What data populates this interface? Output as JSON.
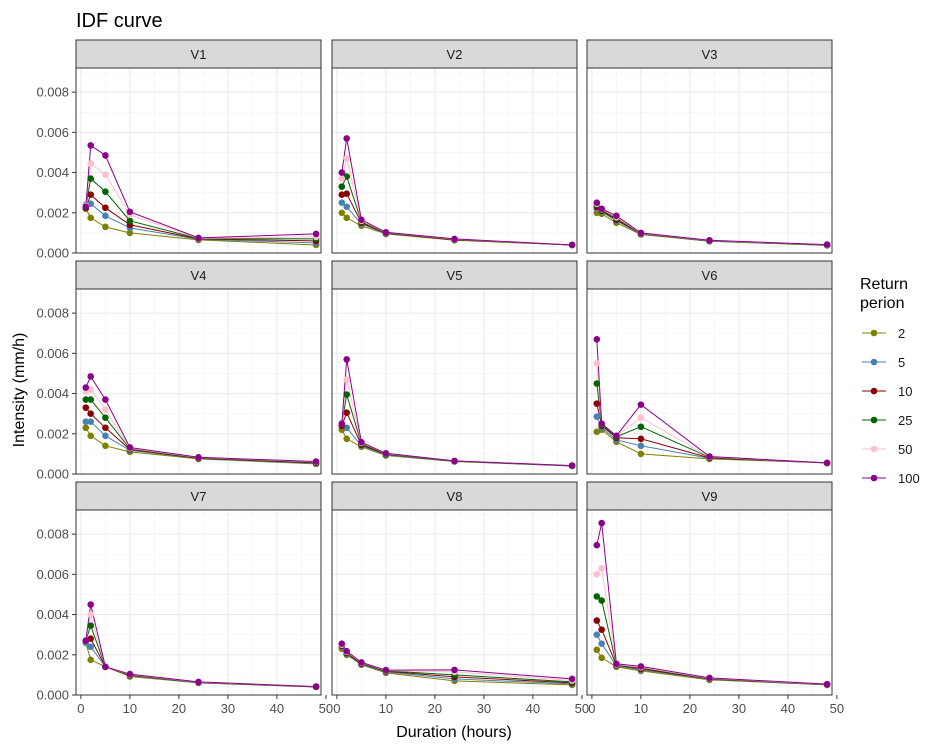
{
  "chart_data": {
    "type": "line",
    "title": "IDF curve",
    "xlabel": "Duration (hours)",
    "ylabel": "Intensity (mm/h)",
    "xlim": [
      -1,
      49
    ],
    "ylim": [
      0,
      0.0092
    ],
    "x_ticks": [
      0,
      10,
      20,
      30,
      40,
      50
    ],
    "y_ticks": [
      0.0,
      0.002,
      0.004,
      0.006,
      0.008
    ],
    "y_tick_labels": [
      "0.000",
      "0.002",
      "0.004",
      "0.006",
      "0.008"
    ],
    "durations": [
      1,
      2,
      5,
      10,
      24,
      48
    ],
    "legend": {
      "title_line1": "Return",
      "title_line2": "perion",
      "placement": "right",
      "entries": [
        {
          "name": "2",
          "color": "#808000"
        },
        {
          "name": "5",
          "color": "#4682B4"
        },
        {
          "name": "10",
          "color": "#8B0000"
        },
        {
          "name": "25",
          "color": "#006400"
        },
        {
          "name": "50",
          "color": "#FFC0CB"
        },
        {
          "name": "100",
          "color": "#8B008B"
        }
      ]
    },
    "panels": [
      {
        "name": "V1",
        "series": [
          [
            0.0022,
            0.00175,
            0.0013,
            0.001,
            0.00065,
            0.0004
          ],
          [
            0.0024,
            0.00245,
            0.00185,
            0.00125,
            0.00068,
            0.0005
          ],
          [
            0.00225,
            0.0029,
            0.00225,
            0.0014,
            0.0007,
            0.0006
          ],
          [
            0.0023,
            0.0037,
            0.00305,
            0.0016,
            0.00072,
            0.0007
          ],
          [
            0.00235,
            0.00445,
            0.0039,
            0.0019,
            0.00073,
            0.0008
          ],
          [
            0.0023,
            0.00535,
            0.00485,
            0.00205,
            0.00075,
            0.00095
          ]
        ]
      },
      {
        "name": "V2",
        "series": [
          [
            0.002,
            0.00175,
            0.00135,
            0.00095,
            0.00063,
            0.0004
          ],
          [
            0.0025,
            0.0023,
            0.00145,
            0.00097,
            0.00065,
            0.0004
          ],
          [
            0.0029,
            0.00295,
            0.0015,
            0.00098,
            0.00066,
            0.0004
          ],
          [
            0.0033,
            0.0038,
            0.00155,
            0.001,
            0.00068,
            0.0004
          ],
          [
            0.0037,
            0.0047,
            0.0016,
            0.00102,
            0.00069,
            0.0004
          ],
          [
            0.004,
            0.0057,
            0.00165,
            0.00103,
            0.0007,
            0.0004
          ]
        ]
      },
      {
        "name": "V3",
        "series": [
          [
            0.002,
            0.00195,
            0.0015,
            0.00092,
            0.00058,
            0.00038
          ],
          [
            0.0022,
            0.00205,
            0.0016,
            0.00095,
            0.00059,
            0.00039
          ],
          [
            0.0023,
            0.0021,
            0.00165,
            0.00097,
            0.0006,
            0.0004
          ],
          [
            0.0024,
            0.00215,
            0.00172,
            0.00098,
            0.00061,
            0.0004
          ],
          [
            0.00245,
            0.00218,
            0.00178,
            0.00099,
            0.00062,
            0.00041
          ],
          [
            0.0025,
            0.0022,
            0.00185,
            0.001,
            0.00063,
            0.00042
          ]
        ]
      },
      {
        "name": "V4",
        "series": [
          [
            0.0023,
            0.0019,
            0.0014,
            0.0011,
            0.00075,
            0.0005
          ],
          [
            0.0026,
            0.0026,
            0.0019,
            0.00118,
            0.00077,
            0.00052
          ],
          [
            0.0033,
            0.003,
            0.0023,
            0.00122,
            0.00078,
            0.00055
          ],
          [
            0.0037,
            0.0037,
            0.0028,
            0.00125,
            0.0008,
            0.00058
          ],
          [
            0.0041,
            0.0042,
            0.0032,
            0.00128,
            0.00082,
            0.0006
          ],
          [
            0.0043,
            0.00485,
            0.0037,
            0.00132,
            0.00083,
            0.00062
          ]
        ]
      },
      {
        "name": "V5",
        "series": [
          [
            0.0022,
            0.00175,
            0.00135,
            0.00092,
            0.00062,
            0.0004
          ],
          [
            0.0024,
            0.0023,
            0.0014,
            0.00095,
            0.00063,
            0.0004
          ],
          [
            0.0024,
            0.00305,
            0.00145,
            0.00098,
            0.00064,
            0.00041
          ],
          [
            0.0025,
            0.00395,
            0.0015,
            0.001,
            0.00064,
            0.00041
          ],
          [
            0.0025,
            0.0047,
            0.00155,
            0.00102,
            0.00065,
            0.00042
          ],
          [
            0.0025,
            0.0057,
            0.00158,
            0.00103,
            0.00065,
            0.00042
          ]
        ]
      },
      {
        "name": "V6",
        "series": [
          [
            0.0021,
            0.0022,
            0.0016,
            0.001,
            0.00075,
            0.00055
          ],
          [
            0.00285,
            0.0023,
            0.0017,
            0.0014,
            0.00078,
            0.00055
          ],
          [
            0.0035,
            0.0024,
            0.0018,
            0.00175,
            0.0008,
            0.00055
          ],
          [
            0.0045,
            0.00245,
            0.00185,
            0.00235,
            0.00083,
            0.00055
          ],
          [
            0.0055,
            0.0025,
            0.0019,
            0.0028,
            0.00085,
            0.00055
          ],
          [
            0.0067,
            0.0025,
            0.0019,
            0.00345,
            0.00087,
            0.00055
          ]
        ]
      },
      {
        "name": "V7",
        "series": [
          [
            0.0026,
            0.00175,
            0.0014,
            0.00092,
            0.0006,
            0.0004
          ],
          [
            0.0026,
            0.0024,
            0.0014,
            0.00096,
            0.00061,
            0.0004
          ],
          [
            0.0027,
            0.0028,
            0.0014,
            0.00098,
            0.00062,
            0.00041
          ],
          [
            0.0027,
            0.00345,
            0.0014,
            0.001,
            0.00063,
            0.00041
          ],
          [
            0.0027,
            0.004,
            0.0014,
            0.00102,
            0.00064,
            0.00042
          ],
          [
            0.0027,
            0.0045,
            0.0014,
            0.00104,
            0.00065,
            0.00042
          ]
        ]
      },
      {
        "name": "V8",
        "series": [
          [
            0.0023,
            0.002,
            0.0015,
            0.0011,
            0.0007,
            0.0005
          ],
          [
            0.0024,
            0.00205,
            0.00152,
            0.00115,
            0.0008,
            0.00055
          ],
          [
            0.00245,
            0.00208,
            0.00155,
            0.00118,
            0.0009,
            0.0006
          ],
          [
            0.0025,
            0.00212,
            0.00158,
            0.0012,
            0.001,
            0.00065
          ],
          [
            0.0025,
            0.00215,
            0.0016,
            0.00122,
            0.00115,
            0.00072
          ],
          [
            0.00255,
            0.00218,
            0.00162,
            0.00124,
            0.00125,
            0.0008
          ]
        ]
      },
      {
        "name": "V9",
        "series": [
          [
            0.00225,
            0.00185,
            0.0014,
            0.0012,
            0.00075,
            0.0005
          ],
          [
            0.003,
            0.00255,
            0.00145,
            0.00125,
            0.00078,
            0.00051
          ],
          [
            0.0037,
            0.00325,
            0.00148,
            0.0013,
            0.0008,
            0.00052
          ],
          [
            0.0049,
            0.0047,
            0.0015,
            0.00135,
            0.00082,
            0.00053
          ],
          [
            0.006,
            0.0063,
            0.00152,
            0.00138,
            0.00083,
            0.00053
          ],
          [
            0.00745,
            0.00855,
            0.00155,
            0.00142,
            0.00085,
            0.00054
          ]
        ]
      }
    ]
  }
}
